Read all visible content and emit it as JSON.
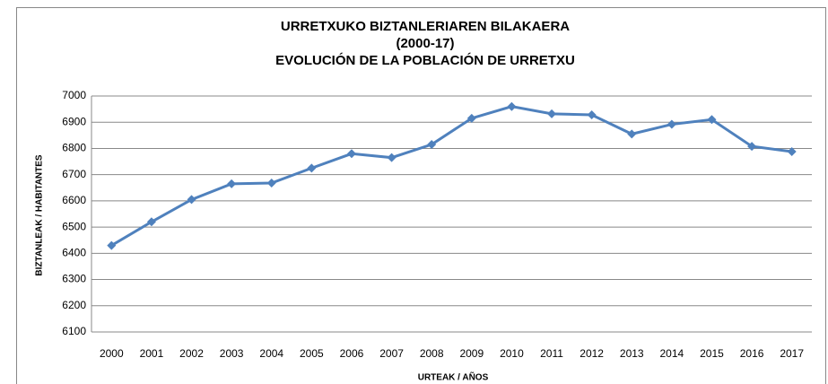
{
  "chart_data": {
    "type": "line",
    "title": [
      "URRETXUKO BIZTANLERIAREN BILAKAERA",
      "(2000-17)",
      "EVOLUCIÓN DE LA POBLACIÓN DE URRETXU"
    ],
    "x_label": "URTEAK / AÑOS",
    "y_label": "BIZTANLEAK / HABITANTES",
    "categories": [
      "2000",
      "2001",
      "2002",
      "2003",
      "2004",
      "2005",
      "2006",
      "2007",
      "2008",
      "2009",
      "2010",
      "2011",
      "2012",
      "2013",
      "2014",
      "2015",
      "2016",
      "2017"
    ],
    "series": [
      {
        "color": "#4f81bd",
        "values": [
          6430,
          6520,
          6605,
          6665,
          6668,
          6725,
          6780,
          6765,
          6815,
          6915,
          6960,
          6932,
          6928,
          6855,
          6892,
          6910,
          6808,
          6788
        ]
      }
    ],
    "ylim": [
      6100,
      7000
    ],
    "yticks": [
      6100,
      6200,
      6300,
      6400,
      6500,
      6600,
      6700,
      6800,
      6900,
      7000
    ],
    "grid": true
  }
}
